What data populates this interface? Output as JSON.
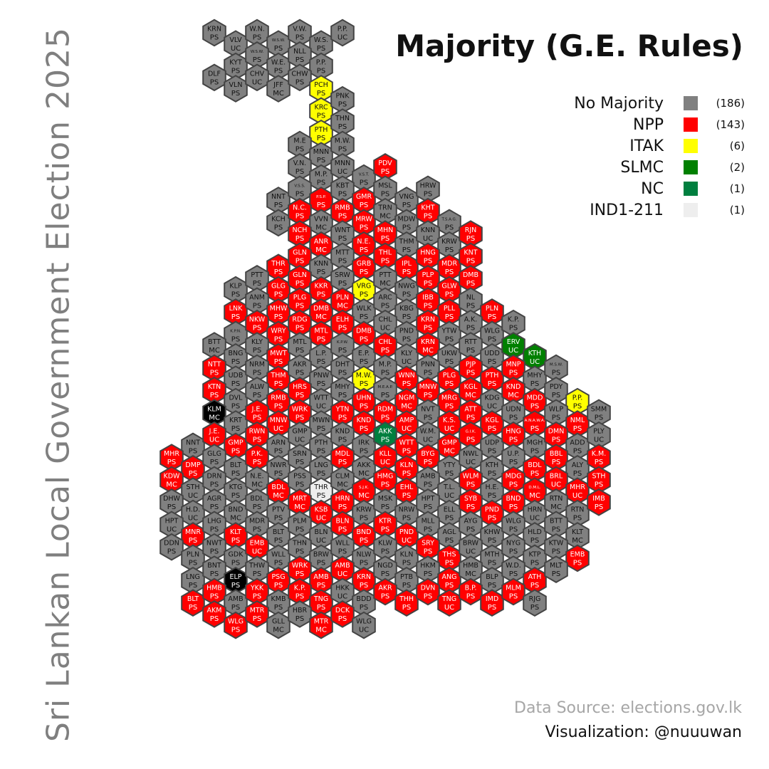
{
  "title": "Majority (G.E. Rules)",
  "side_title": "Sri Lankan Local Government Election 2025",
  "source": "Data Source: elections.gov.lk",
  "credit": "Visualization: @nuuuwan",
  "legend": [
    {
      "label": "No Majority",
      "count": "(186)",
      "color": "#808080"
    },
    {
      "label": "NPP",
      "count": "(143)",
      "color": "#ff0000"
    },
    {
      "label": "ITAK",
      "count": "(6)",
      "color": "#ffff00"
    },
    {
      "label": "SLMC",
      "count": "(2)",
      "color": "#008000"
    },
    {
      "label": "NC",
      "count": "(1)",
      "color": "#007f3f"
    },
    {
      "label": "IND1-211",
      "count": "(1)",
      "color": "#eeeeee"
    }
  ],
  "party_colors": {
    "G": "#808080",
    "R": "#ff0000",
    "Y": "#ffff00",
    "S": "#008000",
    "N": "#007f3f",
    "W": "#eeeeee",
    "K": "#000000"
  },
  "hexes": [
    [
      "KRN",
      "PS",
      "G"
    ],
    [
      "VLV",
      "UC",
      "G"
    ],
    [
      "W.N.",
      "PS",
      "G"
    ],
    [
      "W.S.W.",
      "PS",
      "G"
    ],
    [
      "V.W.",
      "PS",
      "G"
    ],
    [
      "W.S.",
      "PS",
      "G"
    ],
    [
      "P.P.",
      "UC",
      "G"
    ],
    [
      "KYT",
      "PS",
      "G"
    ],
    [
      "W.S.W.",
      "PS",
      "G"
    ],
    [
      "W.E.",
      "PS",
      "G"
    ],
    [
      "NLL",
      "PS",
      "G"
    ],
    [
      "P.P.",
      "PS",
      "G"
    ],
    [
      "DLF",
      "PS",
      "G"
    ],
    [
      "VLN",
      "PS",
      "G"
    ],
    [
      "CHV",
      "UC",
      "G"
    ],
    [
      "JFF",
      "MC",
      "G"
    ],
    [
      "CHW",
      "PS",
      "G"
    ],
    [
      "PCH",
      "PS",
      "Y"
    ],
    [
      "KRC",
      "PS",
      "Y"
    ],
    [
      "PNK",
      "PS",
      "G"
    ],
    [
      "PTH",
      "PS",
      "Y"
    ],
    [
      "THN",
      "PS",
      "G"
    ],
    [
      "M.E",
      "PS",
      "G"
    ],
    [
      "MNN",
      "PS",
      "G"
    ],
    [
      "M.W.",
      "PS",
      "G"
    ],
    [
      "V.N.",
      "PS",
      "G"
    ],
    [
      "M.P.",
      "PS",
      "G"
    ],
    [
      "MNN",
      "UC",
      "G"
    ],
    [
      "V.S.T.",
      "PS",
      "G"
    ],
    [
      "PDV",
      "PS",
      "R"
    ],
    [
      "NNT",
      "PS",
      "G"
    ],
    [
      "V.S.S.",
      "PS",
      "G"
    ],
    [
      "P.S.P.",
      "PS",
      "R"
    ],
    [
      "KBT",
      "PS",
      "G"
    ],
    [
      "GMR",
      "PS",
      "R"
    ],
    [
      "MSL",
      "PS",
      "G"
    ],
    [
      "VNG",
      "PS",
      "G"
    ],
    [
      "HRW",
      "PS",
      "G"
    ],
    [
      "KCH",
      "PS",
      "G"
    ],
    [
      "N.C.",
      "PS",
      "R"
    ],
    [
      "VVN",
      "MC",
      "G"
    ],
    [
      "RMB",
      "PS",
      "R"
    ],
    [
      "MRW",
      "PS",
      "R"
    ],
    [
      "TRN",
      "MC",
      "G"
    ],
    [
      "MDW",
      "PS",
      "G"
    ],
    [
      "KHT",
      "PS",
      "R"
    ],
    [
      "T.S.A.G.",
      "PS",
      "G"
    ],
    [
      "NCH",
      "PS",
      "R"
    ],
    [
      "ANR",
      "MC",
      "R"
    ],
    [
      "WNT",
      "PS",
      "G"
    ],
    [
      "N.E.",
      "PS",
      "R"
    ],
    [
      "MHN",
      "PS",
      "R"
    ],
    [
      "THM",
      "PS",
      "G"
    ],
    [
      "KNN",
      "UC",
      "G"
    ],
    [
      "KRW",
      "PS",
      "G"
    ],
    [
      "RJN",
      "PS",
      "R"
    ],
    [
      "THR",
      "PS",
      "R"
    ],
    [
      "GLN",
      "PS",
      "R"
    ],
    [
      "KNN",
      "PS",
      "G"
    ],
    [
      "MTT",
      "PS",
      "G"
    ],
    [
      "GRB",
      "PS",
      "R"
    ],
    [
      "THL",
      "PS",
      "R"
    ],
    [
      "IPL",
      "PS",
      "R"
    ],
    [
      "HNG",
      "PS",
      "R"
    ],
    [
      "MDR",
      "PS",
      "R"
    ],
    [
      "KNT",
      "PS",
      "R"
    ],
    [
      "KLP",
      "PS",
      "G"
    ],
    [
      "PTT",
      "PS",
      "G"
    ],
    [
      "GLG",
      "PS",
      "R"
    ],
    [
      "GLN",
      "PS",
      "R"
    ],
    [
      "KKR",
      "PS",
      "R"
    ],
    [
      "SRW",
      "PS",
      "G"
    ],
    [
      "VRG",
      "PS",
      "Y"
    ],
    [
      "PTT",
      "MC",
      "G"
    ],
    [
      "NWG",
      "PS",
      "G"
    ],
    [
      "PLP",
      "PS",
      "R"
    ],
    [
      "GLW",
      "PS",
      "R"
    ],
    [
      "DMB",
      "PS",
      "R"
    ],
    [
      "LNK",
      "PS",
      "R"
    ],
    [
      "ANM",
      "PS",
      "G"
    ],
    [
      "MHW",
      "PS",
      "R"
    ],
    [
      "PLG",
      "PS",
      "R"
    ],
    [
      "DMB",
      "MC",
      "R"
    ],
    [
      "PLN",
      "MC",
      "R"
    ],
    [
      "WLK",
      "PS",
      "G"
    ],
    [
      "ARC",
      "PS",
      "G"
    ],
    [
      "KBG",
      "PS",
      "G"
    ],
    [
      "IBB",
      "PS",
      "R"
    ],
    [
      "PLL",
      "PS",
      "R"
    ],
    [
      "NL",
      "PS",
      "G"
    ],
    [
      "PLN",
      "PS",
      "R"
    ],
    [
      "K.P.N.",
      "PS",
      "G"
    ],
    [
      "NKW",
      "PS",
      "R"
    ],
    [
      "WRY",
      "PS",
      "R"
    ],
    [
      "RDG",
      "PS",
      "R"
    ],
    [
      "MTL",
      "PS",
      "R"
    ],
    [
      "ELH",
      "PS",
      "R"
    ],
    [
      "DMB",
      "PS",
      "R"
    ],
    [
      "CHL",
      "UC",
      "G"
    ],
    [
      "PND",
      "PS",
      "G"
    ],
    [
      "KRN",
      "PS",
      "R"
    ],
    [
      "YTW",
      "PS",
      "G"
    ],
    [
      "A.K.",
      "PS",
      "G"
    ],
    [
      "WLG",
      "PS",
      "G"
    ],
    [
      "K.P.",
      "PS",
      "G"
    ],
    [
      "BTT",
      "MC",
      "G"
    ],
    [
      "BNG",
      "PS",
      "G"
    ],
    [
      "KLY",
      "PS",
      "G"
    ],
    [
      "MWT",
      "PS",
      "R"
    ],
    [
      "MTL",
      "PS",
      "G"
    ],
    [
      "L.P.",
      "PS",
      "G"
    ],
    [
      "K.P.W.",
      "PS",
      "G"
    ],
    [
      "E.P.",
      "PS",
      "G"
    ],
    [
      "CHL",
      "PS",
      "R"
    ],
    [
      "KLY",
      "UC",
      "G"
    ],
    [
      "KRN",
      "MC",
      "R"
    ],
    [
      "UKW",
      "PS",
      "G"
    ],
    [
      "RTT",
      "PS",
      "G"
    ],
    [
      "UDD",
      "PS",
      "G"
    ],
    [
      "ERV",
      "UC",
      "S"
    ],
    [
      "KTH",
      "UC",
      "S"
    ],
    [
      "NTT",
      "PS",
      "R"
    ],
    [
      "UDB",
      "PS",
      "G"
    ],
    [
      "NRM",
      "PS",
      "G"
    ],
    [
      "THM",
      "PS",
      "R"
    ],
    [
      "AKR",
      "PS",
      "G"
    ],
    [
      "PNW",
      "PS",
      "G"
    ],
    [
      "DHT",
      "PS",
      "G"
    ],
    [
      "M.W.",
      "PS",
      "Y"
    ],
    [
      "M.P.",
      "PS",
      "G"
    ],
    [
      "WNN",
      "PS",
      "R"
    ],
    [
      "PNN",
      "PS",
      "G"
    ],
    [
      "PLG",
      "PS",
      "R"
    ],
    [
      "PJP",
      "PS",
      "R"
    ],
    [
      "PTH",
      "PS",
      "R"
    ],
    [
      "MNP",
      "PS",
      "R"
    ],
    [
      "MHY",
      "PS",
      "G"
    ],
    [
      "M.S.W.",
      "PS",
      "G"
    ],
    [
      "KTN",
      "PS",
      "R"
    ],
    [
      "DVL",
      "PS",
      "G"
    ],
    [
      "ALW",
      "PS",
      "G"
    ],
    [
      "RMB",
      "PS",
      "R"
    ],
    [
      "HRS",
      "PS",
      "R"
    ],
    [
      "WTT",
      "UC",
      "G"
    ],
    [
      "MHY",
      "PS",
      "G"
    ],
    [
      "UHN",
      "PS",
      "R"
    ],
    [
      "M.E.A.P.",
      "PS",
      "G"
    ],
    [
      "NGM",
      "MC",
      "R"
    ],
    [
      "MNW",
      "PS",
      "R"
    ],
    [
      "MRG",
      "PS",
      "R"
    ],
    [
      "KGL",
      "MC",
      "R"
    ],
    [
      "KDG",
      "UC",
      "G"
    ],
    [
      "KND",
      "MC",
      "R"
    ],
    [
      "MDD",
      "PS",
      "R"
    ],
    [
      "PDY",
      "PS",
      "G"
    ],
    [
      "P.P.",
      "PS",
      "Y"
    ],
    [
      "KLM",
      "MC",
      "K"
    ],
    [
      "KRT",
      "PS",
      "G"
    ],
    [
      "J.E.",
      "PS",
      "R"
    ],
    [
      "MNW",
      "UC",
      "R"
    ],
    [
      "WRK",
      "PS",
      "R"
    ],
    [
      "MWN",
      "PS",
      "G"
    ],
    [
      "YTN",
      "PS",
      "R"
    ],
    [
      "KND",
      "PS",
      "R"
    ],
    [
      "RDM",
      "PS",
      "R"
    ],
    [
      "AMP",
      "UC",
      "R"
    ],
    [
      "NVT",
      "PS",
      "G"
    ],
    [
      "K.S.",
      "UC",
      "R"
    ],
    [
      "ATT",
      "PS",
      "R"
    ],
    [
      "KGL",
      "PS",
      "R"
    ],
    [
      "UDN",
      "PS",
      "G"
    ],
    [
      "A.N.A.W.A.",
      "PS",
      "R"
    ],
    [
      "WLP",
      "PS",
      "G"
    ],
    [
      "NML",
      "PS",
      "R"
    ],
    [
      "SMM",
      "PS",
      "G"
    ],
    [
      "NNT",
      "PS",
      "G"
    ],
    [
      "J.E.",
      "UC",
      "R"
    ],
    [
      "GMP",
      "PS",
      "R"
    ],
    [
      "RWN",
      "PS",
      "R"
    ],
    [
      "ARN",
      "PS",
      "G"
    ],
    [
      "GMP",
      "UC",
      "G"
    ],
    [
      "PTH",
      "PS",
      "G"
    ],
    [
      "KND",
      "PS",
      "G"
    ],
    [
      "IRK",
      "PS",
      "G"
    ],
    [
      "AKK",
      "PS",
      "N"
    ],
    [
      "WTT",
      "PS",
      "R"
    ],
    [
      "W.M.",
      "UC",
      "G"
    ],
    [
      "GMP",
      "MC",
      "R"
    ],
    [
      "G.I.K.",
      "PS",
      "R"
    ],
    [
      "UDP",
      "PS",
      "G"
    ],
    [
      "HNG",
      "PS",
      "R"
    ],
    [
      "MGH",
      "PS",
      "G"
    ],
    [
      "DMN",
      "PS",
      "R"
    ],
    [
      "ADD",
      "PS",
      "G"
    ],
    [
      "PLY",
      "UC",
      "G"
    ],
    [
      "MHR",
      "PS",
      "R"
    ],
    [
      "DMP",
      "PS",
      "R"
    ],
    [
      "GLG",
      "PS",
      "G"
    ],
    [
      "BLT",
      "PS",
      "G"
    ],
    [
      "P.K.",
      "PS",
      "R"
    ],
    [
      "NWR",
      "PS",
      "G"
    ],
    [
      "SRN",
      "PS",
      "G"
    ],
    [
      "LNG",
      "PS",
      "G"
    ],
    [
      "MDL",
      "PS",
      "R"
    ],
    [
      "AKK",
      "MC",
      "G"
    ],
    [
      "KLL",
      "UC",
      "R"
    ],
    [
      "KLN",
      "PS",
      "R"
    ],
    [
      "BYG",
      "PS",
      "R"
    ],
    [
      "YTY",
      "PS",
      "G"
    ],
    [
      "NWL",
      "UC",
      "G"
    ],
    [
      "KTH",
      "PS",
      "G"
    ],
    [
      "U.P.",
      "PS",
      "G"
    ],
    [
      "BDL",
      "PS",
      "R"
    ],
    [
      "BBL",
      "PS",
      "R"
    ],
    [
      "ALY",
      "PS",
      "G"
    ],
    [
      "K.M.",
      "PS",
      "R"
    ],
    [
      "KDW",
      "MC",
      "R"
    ],
    [
      "STH",
      "UC",
      "G"
    ],
    [
      "DRN",
      "PS",
      "G"
    ],
    [
      "KTG",
      "PS",
      "G"
    ],
    [
      "N.E.",
      "MC",
      "G"
    ],
    [
      "BDL",
      "MC",
      "R"
    ],
    [
      "PSS",
      "PS",
      "G"
    ],
    [
      "THR",
      "PS",
      "W"
    ],
    [
      "CLM",
      "MC",
      "G"
    ],
    [
      "S.J.K.",
      "MC",
      "R"
    ],
    [
      "HMG",
      "PS",
      "R"
    ],
    [
      "EHL",
      "PS",
      "R"
    ],
    [
      "AMB",
      "PS",
      "G"
    ],
    [
      "T.L.",
      "UC",
      "G"
    ],
    [
      "WLM",
      "PS",
      "R"
    ],
    [
      "H.E.",
      "PS",
      "G"
    ],
    [
      "MDG",
      "PS",
      "R"
    ],
    [
      "D.M.L.",
      "MC",
      "R"
    ],
    [
      "BRL",
      "UC",
      "R"
    ],
    [
      "MHR",
      "UC",
      "R"
    ],
    [
      "STH",
      "PS",
      "R"
    ],
    [
      "DHW",
      "PS",
      "G"
    ],
    [
      "H.D.",
      "UC",
      "G"
    ],
    [
      "AGR",
      "PS",
      "G"
    ],
    [
      "BND",
      "MC",
      "G"
    ],
    [
      "BDL",
      "PS",
      "G"
    ],
    [
      "PTV",
      "PS",
      "G"
    ],
    [
      "MRT",
      "MC",
      "R"
    ],
    [
      "KSB",
      "UC",
      "R"
    ],
    [
      "HRN",
      "PS",
      "R"
    ],
    [
      "KRW",
      "PS",
      "G"
    ],
    [
      "MSK",
      "PS",
      "G"
    ],
    [
      "NRW",
      "PS",
      "G"
    ],
    [
      "HPT",
      "PS",
      "G"
    ],
    [
      "ELL",
      "PS",
      "G"
    ],
    [
      "SYB",
      "PS",
      "R"
    ],
    [
      "PND",
      "PS",
      "R"
    ],
    [
      "BND",
      "PS",
      "R"
    ],
    [
      "HRN",
      "UC",
      "G"
    ],
    [
      "RTN",
      "MC",
      "G"
    ],
    [
      "RTN",
      "PS",
      "G"
    ],
    [
      "IMB",
      "PS",
      "R"
    ],
    [
      "HPT",
      "UC",
      "G"
    ],
    [
      "MNR",
      "PS",
      "R"
    ],
    [
      "LHG",
      "PS",
      "G"
    ],
    [
      "KLT",
      "PS",
      "R"
    ],
    [
      "MDR",
      "PS",
      "G"
    ],
    [
      "BLT",
      "PS",
      "G"
    ],
    [
      "PLM",
      "PS",
      "G"
    ],
    [
      "BLN",
      "UC",
      "G"
    ],
    [
      "BLN",
      "PS",
      "R"
    ],
    [
      "BND",
      "PS",
      "R"
    ],
    [
      "KTR",
      "PS",
      "R"
    ],
    [
      "PND",
      "UC",
      "R"
    ],
    [
      "MLL",
      "PS",
      "G"
    ],
    [
      "AGL",
      "PS",
      "G"
    ],
    [
      "AYG",
      "PS",
      "G"
    ],
    [
      "KHW",
      "PS",
      "G"
    ],
    [
      "WLG",
      "PS",
      "G"
    ],
    [
      "HLD",
      "PS",
      "G"
    ],
    [
      "BTT",
      "PS",
      "G"
    ],
    [
      "KLT",
      "MC",
      "G"
    ],
    [
      "DDN",
      "PS",
      "G"
    ],
    [
      "PLN",
      "PS",
      "G"
    ],
    [
      "NWT",
      "PS",
      "G"
    ],
    [
      "GDK",
      "PS",
      "G"
    ],
    [
      "EMB",
      "UC",
      "R"
    ],
    [
      "WLL",
      "PS",
      "G"
    ],
    [
      "THN",
      "PS",
      "G"
    ],
    [
      "BRW",
      "PS",
      "G"
    ],
    [
      "WLL",
      "PS",
      "G"
    ],
    [
      "NLW",
      "PS",
      "G"
    ],
    [
      "KLW",
      "PS",
      "G"
    ],
    [
      "KLN",
      "PS",
      "G"
    ],
    [
      "SRY",
      "PS",
      "R"
    ],
    [
      "THS",
      "PS",
      "R"
    ],
    [
      "BRW",
      "UC",
      "G"
    ],
    [
      "MTH",
      "PS",
      "G"
    ],
    [
      "NYG",
      "PS",
      "G"
    ],
    [
      "KTP",
      "PS",
      "G"
    ],
    [
      "KTW",
      "PS",
      "G"
    ],
    [
      "EMB",
      "PS",
      "R"
    ],
    [
      "LNG",
      "PS",
      "G"
    ],
    [
      "BNT",
      "PS",
      "G"
    ],
    [
      "ELP",
      "PS",
      "K"
    ],
    [
      "THW",
      "PS",
      "G"
    ],
    [
      "PSG",
      "PS",
      "R"
    ],
    [
      "WRK",
      "PS",
      "R"
    ],
    [
      "AMB",
      "PS",
      "R"
    ],
    [
      "AMB",
      "UC",
      "R"
    ],
    [
      "KRN",
      "PS",
      "R"
    ],
    [
      "NGD",
      "PS",
      "G"
    ],
    [
      "PTB",
      "PS",
      "G"
    ],
    [
      "HKM",
      "PS",
      "G"
    ],
    [
      "ANG",
      "PS",
      "R"
    ],
    [
      "HMB",
      "MC",
      "G"
    ],
    [
      "BLP",
      "PS",
      "G"
    ],
    [
      "W.D.",
      "PS",
      "G"
    ],
    [
      "ATH",
      "PS",
      "R"
    ],
    [
      "MLT",
      "PS",
      "G"
    ],
    [
      "BLT",
      "PS",
      "R"
    ],
    [
      "HMB",
      "PS",
      "R"
    ],
    [
      "AMB",
      "PS",
      "G"
    ],
    [
      "YKK",
      "PS",
      "R"
    ],
    [
      "KMB",
      "PS",
      "G"
    ],
    [
      "K.P.",
      "PS",
      "R"
    ],
    [
      "TNG",
      "PS",
      "R"
    ],
    [
      "HKK",
      "UC",
      "G"
    ],
    [
      "BDD",
      "PS",
      "G"
    ],
    [
      "AKR",
      "PS",
      "R"
    ],
    [
      "THH",
      "PS",
      "R"
    ],
    [
      "DVN",
      "PS",
      "R"
    ],
    [
      "TNG",
      "UC",
      "R"
    ],
    [
      "B.P.",
      "PS",
      "R"
    ],
    [
      "IMD",
      "PS",
      "R"
    ],
    [
      "MLM",
      "PS",
      "R"
    ],
    [
      "RJG",
      "PS",
      "G"
    ],
    [
      "AKM",
      "PS",
      "R"
    ],
    [
      "WLG",
      "PS",
      "R"
    ],
    [
      "MTR",
      "PS",
      "R"
    ],
    [
      "GLL",
      "MC",
      "G"
    ],
    [
      "HBR",
      "PS",
      "G"
    ],
    [
      "MTR",
      "MC",
      "R"
    ],
    [
      "DCK",
      "PS",
      "R"
    ],
    [
      "WLG",
      "UC",
      "G"
    ]
  ]
}
